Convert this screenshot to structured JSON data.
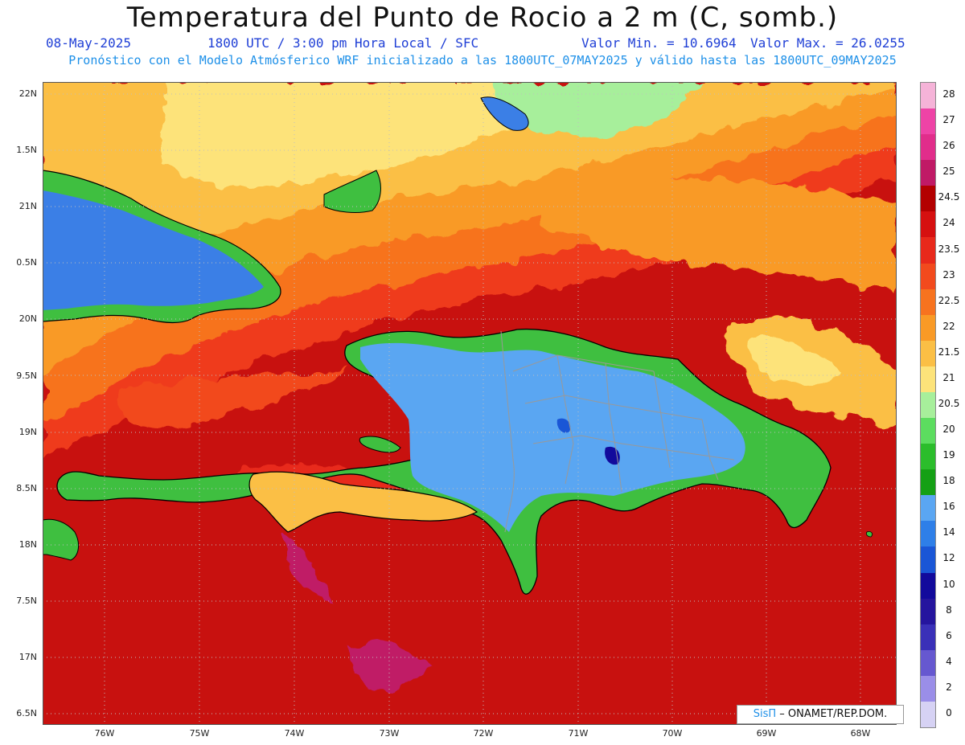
{
  "header": {
    "title": "Temperatura del Punto de Rocio a 2 m (C, somb.)",
    "date": "08-May-2025",
    "time": "1800 UTC / 3:00 pm Hora Local / SFC",
    "min_label": "Valor Min. = 10.6964",
    "max_label": "Valor Max. = 26.0255",
    "model_line": "Pronóstico con el Modelo Atmósferico WRF inicializado a las 1800UTC_07MAY2025 y válido hasta las  1800UTC_09MAY2025"
  },
  "axes": {
    "lat_labels": [
      "22N",
      "1.5N",
      "21N",
      "0.5N",
      "20N",
      "9.5N",
      "19N",
      "8.5N",
      "18N",
      "7.5N",
      "17N",
      "6.5N"
    ],
    "lon_labels": [
      "76W",
      "75W",
      "74W",
      "73W",
      "72W",
      "71W",
      "70W",
      "69W",
      "68W"
    ]
  },
  "colorbar": {
    "labels": [
      "28",
      "27",
      "26",
      "25",
      "24.5",
      "24",
      "23.5",
      "23",
      "22.5",
      "22",
      "21.5",
      "21",
      "20.5",
      "20",
      "19",
      "18",
      "16",
      "14",
      "12",
      "10",
      "8",
      "6",
      "4",
      "2",
      "0"
    ],
    "colors": [
      "#f5b3d8",
      "#ee43a6",
      "#e12d8b",
      "#c01a66",
      "#b30000",
      "#d61010",
      "#e8291b",
      "#f24a1d",
      "#f7731f",
      "#f99a26",
      "#fbbf45",
      "#fde37a",
      "#a7ef9b",
      "#5cdd5f",
      "#2bbd2b",
      "#15a015",
      "#5aa6f2",
      "#2e7fe8",
      "#1a56d6",
      "#120a9c",
      "#25159e",
      "#3a30b8",
      "#6658d0",
      "#9a8ee8",
      "#d6d2f4"
    ]
  },
  "credit": {
    "brand": "SisΠ",
    "text": "– ONAMET/REP.DOM."
  }
}
